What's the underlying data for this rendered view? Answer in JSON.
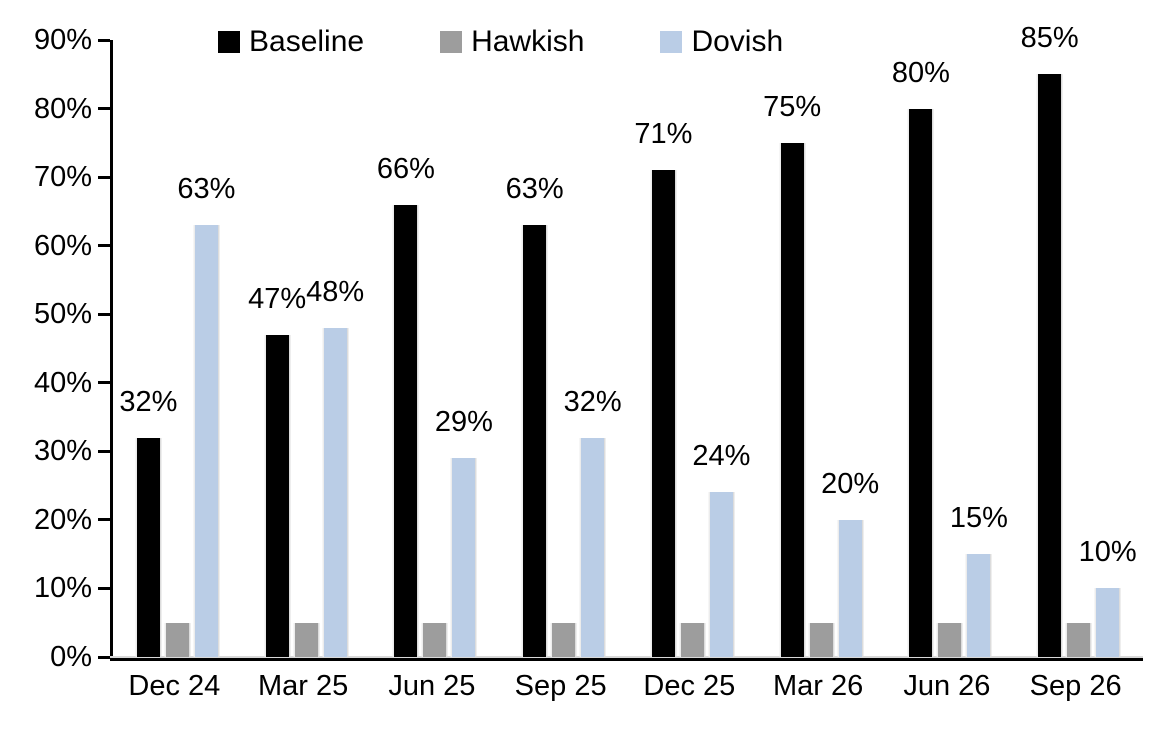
{
  "chart_data": {
    "type": "bar",
    "categories": [
      "Dec 24",
      "Mar 25",
      "Jun 25",
      "Sep 25",
      "Dec 25",
      "Mar 26",
      "Jun 26",
      "Sep 26"
    ],
    "series": [
      {
        "name": "Baseline",
        "color": "#000000",
        "values": [
          32,
          47,
          66,
          63,
          71,
          75,
          80,
          85
        ],
        "labels": [
          "32%",
          "47%",
          "66%",
          "63%",
          "71%",
          "75%",
          "80%",
          "85%"
        ],
        "show_labels": true
      },
      {
        "name": "Hawkish",
        "color": "#9d9d9d",
        "values": [
          5,
          5,
          5,
          5,
          5,
          5,
          5,
          5
        ],
        "show_labels": false
      },
      {
        "name": "Dovish",
        "color": "#bacde6",
        "values": [
          63,
          48,
          29,
          32,
          24,
          20,
          15,
          10
        ],
        "labels": [
          "63%",
          "48%",
          "29%",
          "32%",
          "24%",
          "20%",
          "15%",
          "10%"
        ],
        "show_labels": true
      }
    ],
    "title": "",
    "xlabel": "",
    "ylabel": "",
    "ylim": [
      0,
      90
    ],
    "ytick_step": 10,
    "ytick_labels": [
      "0%",
      "10%",
      "20%",
      "30%",
      "40%",
      "50%",
      "60%",
      "70%",
      "80%",
      "90%"
    ],
    "grid": false,
    "legend_position": "top",
    "axis_color": "#000000",
    "text_color": "#000000"
  }
}
